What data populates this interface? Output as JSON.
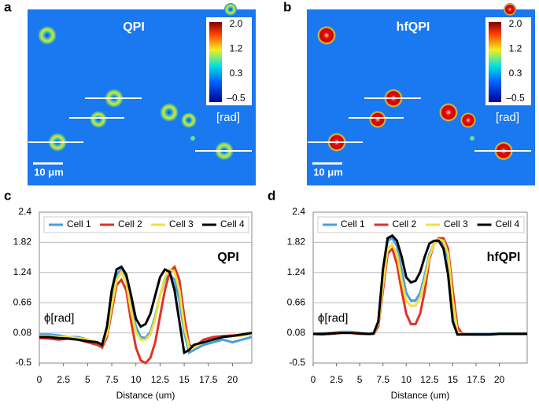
{
  "panels": [
    {
      "letter": "a",
      "title": "QPI",
      "colorbar": {
        "labels": [
          "2.0",
          "1.2",
          "0.3",
          "–0.5"
        ],
        "unit": "[rad]"
      },
      "scale_bar": "10 μm"
    },
    {
      "letter": "b",
      "title": "hfQPI",
      "colorbar": {
        "labels": [
          "2.0",
          "1.2",
          "0.3",
          "–0.5"
        ],
        "unit": "[rad]"
      },
      "scale_bar": "10 μm"
    }
  ],
  "chart_data": [
    {
      "type": "line",
      "panel_label": "c",
      "annotation": "QPI",
      "ylabel": "ϕ[rad]",
      "xlabel": "Distance (um)",
      "x": [
        0,
        1,
        2,
        3,
        4,
        5,
        6,
        6.5,
        7,
        7.5,
        8,
        8.5,
        9,
        9.5,
        10,
        10.5,
        11,
        11.5,
        12,
        12.5,
        13,
        13.5,
        14,
        14.5,
        15,
        15.5,
        16,
        17,
        18,
        19,
        20,
        21,
        22
      ],
      "xlim": [
        0,
        22
      ],
      "ylim": [
        -0.5,
        2.4
      ],
      "xticks": [
        0,
        2.5,
        5,
        7.5,
        10,
        12.5,
        15,
        17.5,
        20
      ],
      "yticks": [
        2.4,
        1.82,
        1.24,
        0.66,
        0.08,
        -0.5
      ],
      "grid": true,
      "legend": "top",
      "series": [
        {
          "name": "Cell 1",
          "color": "#4a9fe0",
          "values": [
            0.05,
            0.05,
            0.03,
            0.0,
            0.0,
            -0.05,
            -0.1,
            -0.2,
            0.1,
            0.7,
            1.2,
            1.3,
            1.1,
            0.6,
            0.2,
            0.0,
            -0.02,
            0.1,
            0.4,
            0.8,
            1.1,
            1.2,
            1.1,
            0.7,
            0.1,
            -0.3,
            -0.25,
            -0.15,
            -0.1,
            -0.05,
            -0.1,
            -0.05,
            0.0
          ]
        },
        {
          "name": "Cell 2",
          "color": "#e0332a",
          "values": [
            -0.02,
            -0.03,
            -0.05,
            -0.03,
            -0.05,
            -0.1,
            -0.15,
            -0.2,
            0.0,
            0.5,
            1.0,
            1.1,
            0.9,
            0.3,
            -0.2,
            -0.45,
            -0.5,
            -0.4,
            -0.1,
            0.4,
            0.9,
            1.25,
            1.35,
            1.1,
            0.4,
            -0.15,
            -0.2,
            -0.05,
            0.0,
            0.02,
            0.03,
            0.04,
            0.05
          ]
        },
        {
          "name": "Cell 3",
          "color": "#f0e040",
          "values": [
            0.02,
            0.02,
            0.0,
            0.0,
            -0.02,
            -0.05,
            -0.1,
            -0.15,
            0.05,
            0.6,
            1.1,
            1.25,
            1.05,
            0.5,
            0.1,
            -0.05,
            -0.05,
            0.05,
            0.35,
            0.8,
            1.15,
            1.3,
            1.25,
            0.9,
            0.2,
            -0.2,
            -0.2,
            -0.1,
            -0.05,
            0.0,
            0.02,
            0.03,
            0.05
          ]
        },
        {
          "name": "Cell 4",
          "color": "#000000",
          "values": [
            0.0,
            0.0,
            -0.02,
            -0.03,
            -0.05,
            -0.08,
            -0.1,
            -0.15,
            0.2,
            0.9,
            1.3,
            1.35,
            1.2,
            0.8,
            0.35,
            0.2,
            0.25,
            0.45,
            0.8,
            1.15,
            1.3,
            1.25,
            0.9,
            0.3,
            -0.3,
            -0.25,
            -0.15,
            -0.1,
            -0.05,
            0.0,
            0.02,
            0.05,
            0.08
          ]
        }
      ]
    },
    {
      "type": "line",
      "panel_label": "d",
      "annotation": "hfQPI",
      "ylabel": "ϕ[rad]",
      "xlabel": "Distance (um)",
      "x": [
        0,
        1,
        2,
        3,
        4,
        5,
        6,
        6.5,
        7,
        7.5,
        8,
        8.5,
        9,
        9.5,
        10,
        10.5,
        11,
        11.5,
        12,
        12.5,
        13,
        13.5,
        14,
        14.5,
        15,
        15.5,
        16,
        17,
        18,
        19,
        20,
        21,
        22,
        23
      ],
      "xlim": [
        0,
        23
      ],
      "ylim": [
        -0.5,
        2.4
      ],
      "xticks": [
        0,
        2.5,
        5,
        7.5,
        10,
        12.5,
        15,
        17.5,
        20
      ],
      "yticks": [
        2.4,
        1.82,
        1.24,
        0.66,
        0.08,
        -0.5
      ],
      "grid": true,
      "legend": "top",
      "series": [
        {
          "name": "Cell 1",
          "color": "#4a9fe0",
          "values": [
            0.06,
            0.07,
            0.08,
            0.1,
            0.1,
            0.08,
            0.06,
            0.08,
            0.3,
            1.2,
            1.85,
            1.9,
            1.75,
            1.3,
            0.85,
            0.7,
            0.7,
            0.85,
            1.2,
            1.6,
            1.8,
            1.85,
            1.8,
            1.5,
            0.6,
            0.1,
            0.06,
            0.06,
            0.06,
            0.06,
            0.07,
            0.07,
            0.07,
            0.07
          ]
        },
        {
          "name": "Cell 2",
          "color": "#e0332a",
          "values": [
            0.05,
            0.05,
            0.06,
            0.08,
            0.08,
            0.06,
            0.05,
            0.06,
            0.2,
            0.9,
            1.6,
            1.7,
            1.4,
            0.9,
            0.45,
            0.25,
            0.25,
            0.45,
            0.9,
            1.5,
            1.8,
            1.9,
            1.9,
            1.7,
            0.9,
            0.2,
            0.06,
            0.05,
            0.05,
            0.05,
            0.06,
            0.06,
            0.06,
            0.06
          ]
        },
        {
          "name": "Cell 3",
          "color": "#f0e040",
          "values": [
            0.05,
            0.06,
            0.07,
            0.09,
            0.09,
            0.07,
            0.05,
            0.07,
            0.25,
            1.0,
            1.7,
            1.78,
            1.6,
            1.1,
            0.7,
            0.6,
            0.6,
            0.75,
            1.1,
            1.55,
            1.8,
            1.88,
            1.85,
            1.6,
            0.7,
            0.1,
            0.05,
            0.05,
            0.05,
            0.05,
            0.06,
            0.06,
            0.06,
            0.06
          ]
        },
        {
          "name": "Cell 4",
          "color": "#000000",
          "values": [
            0.06,
            0.06,
            0.07,
            0.08,
            0.08,
            0.07,
            0.06,
            0.07,
            0.3,
            1.3,
            1.9,
            1.95,
            1.85,
            1.55,
            1.15,
            1.05,
            1.08,
            1.25,
            1.55,
            1.8,
            1.85,
            1.85,
            1.7,
            1.2,
            0.3,
            0.05,
            0.05,
            0.05,
            0.05,
            0.05,
            0.06,
            0.06,
            0.06,
            0.06
          ]
        }
      ]
    }
  ]
}
